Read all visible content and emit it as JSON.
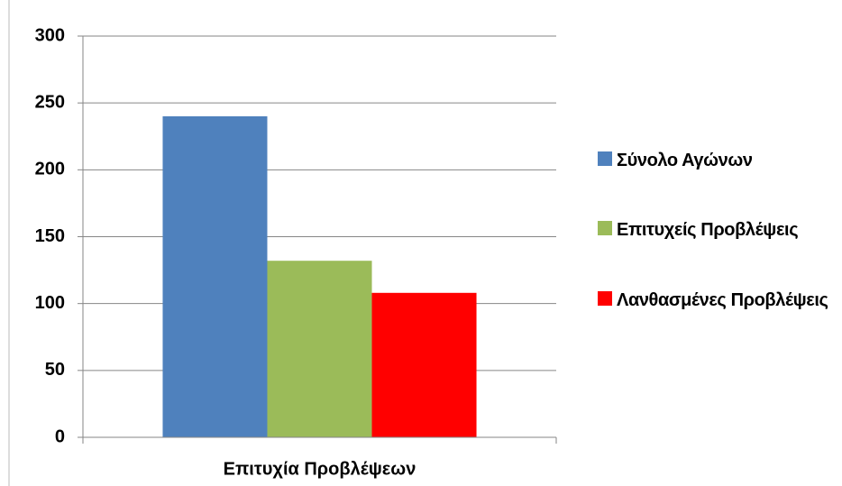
{
  "chart_data": {
    "type": "bar",
    "categories": [
      "Επιτυχία Προβλέψεων"
    ],
    "series": [
      {
        "name": "Σύνολο Αγώνων",
        "color": "#4f81bd",
        "values": [
          240
        ]
      },
      {
        "name": "Επιτυχείς Προβλέψεις",
        "color": "#9bbb59",
        "values": [
          132
        ]
      },
      {
        "name": "Λανθασμένες Προβλέψεις",
        "color": "#ff0000",
        "values": [
          108
        ]
      }
    ],
    "ylim": [
      0,
      300
    ],
    "yticks": [
      0,
      50,
      100,
      150,
      200,
      250,
      300
    ],
    "grid": true,
    "legend": "right"
  }
}
